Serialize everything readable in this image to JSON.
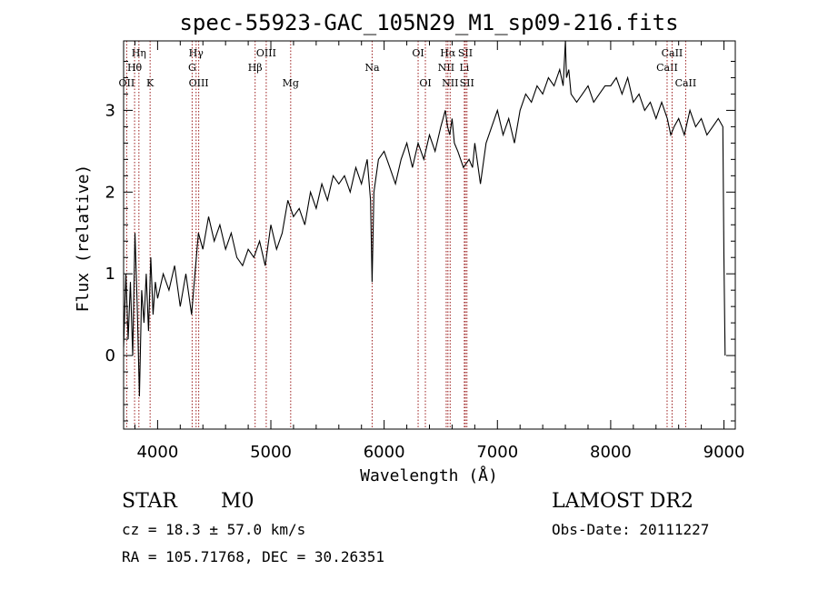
{
  "title": "spec-55923-GAC_105N29_M1_sp09-216.fits",
  "info": {
    "class": "STAR",
    "subclass": "M0",
    "survey": "LAMOST DR2",
    "cz": "cz = 18.3 ± 57.0 km/s",
    "obs_date": "Obs-Date: 20111227",
    "radec": "RA = 105.71768, DEC =  30.26351"
  },
  "chart_data": {
    "type": "line",
    "xlabel": "Wavelength (Å)",
    "ylabel": "Flux (relative)",
    "xlim": [
      3700,
      9100
    ],
    "ylim": [
      -0.9,
      3.85
    ],
    "xticks": [
      4000,
      5000,
      6000,
      7000,
      8000,
      9000
    ],
    "yticks": [
      0,
      1,
      2,
      3
    ],
    "spectral_lines": [
      {
        "name": "OII",
        "wavelength": 3727,
        "row": 3
      },
      {
        "name": "Hη",
        "wavelength": 3835,
        "row": 1
      },
      {
        "name": "Hθ",
        "wavelength": 3797,
        "row": 2
      },
      {
        "name": "K",
        "wavelength": 3934,
        "row": 3
      },
      {
        "name": "G",
        "wavelength": 4305,
        "row": 2
      },
      {
        "name": "Hγ",
        "wavelength": 4340,
        "row": 1
      },
      {
        "name": "OIII",
        "wavelength": 4363,
        "row": 3
      },
      {
        "name": "Hβ",
        "wavelength": 4861,
        "row": 2
      },
      {
        "name": "OIII",
        "wavelength": 4959,
        "row": 1
      },
      {
        "name": "Mg",
        "wavelength": 5175,
        "row": 3
      },
      {
        "name": "Na",
        "wavelength": 5894,
        "row": 2
      },
      {
        "name": "OI",
        "wavelength": 6300,
        "row": 1
      },
      {
        "name": "OI",
        "wavelength": 6364,
        "row": 3
      },
      {
        "name": "NII",
        "wavelength": 6548,
        "row": 2
      },
      {
        "name": "Hα",
        "wavelength": 6563,
        "row": 1
      },
      {
        "name": "NII",
        "wavelength": 6583,
        "row": 3
      },
      {
        "name": "SII",
        "wavelength": 6717,
        "row": 1
      },
      {
        "name": "Li",
        "wavelength": 6708,
        "row": 2
      },
      {
        "name": "SII",
        "wavelength": 6731,
        "row": 3
      },
      {
        "name": "CaII",
        "wavelength": 8498,
        "row": 2
      },
      {
        "name": "CaII",
        "wavelength": 8542,
        "row": 1
      },
      {
        "name": "CaII",
        "wavelength": 8662,
        "row": 3
      }
    ],
    "series": [
      {
        "x": [
          3700,
          3720,
          3740,
          3760,
          3780,
          3800,
          3820,
          3840,
          3860,
          3880,
          3900,
          3920,
          3940,
          3960,
          3980,
          4000,
          4050,
          4100,
          4150,
          4200,
          4250,
          4300,
          4330,
          4360,
          4400,
          4450,
          4500,
          4550,
          4600,
          4650,
          4700,
          4750,
          4800,
          4850,
          4900,
          4950,
          5000,
          5050,
          5100,
          5150,
          5200,
          5250,
          5300,
          5350,
          5400,
          5450,
          5500,
          5550,
          5600,
          5650,
          5700,
          5750,
          5800,
          5850,
          5880,
          5894,
          5910,
          5950,
          6000,
          6050,
          6100,
          6150,
          6200,
          6250,
          6300,
          6350,
          6400,
          6450,
          6500,
          6520,
          6540,
          6560,
          6580,
          6600,
          6620,
          6650,
          6700,
          6750,
          6780,
          6800,
          6850,
          6900,
          6950,
          7000,
          7050,
          7100,
          7150,
          7200,
          7250,
          7300,
          7350,
          7400,
          7450,
          7500,
          7550,
          7580,
          7600,
          7610,
          7630,
          7650,
          7700,
          7750,
          7800,
          7850,
          7900,
          7950,
          8000,
          8050,
          8100,
          8150,
          8200,
          8250,
          8300,
          8350,
          8400,
          8450,
          8500,
          8530,
          8560,
          8600,
          8650,
          8700,
          8750,
          8800,
          8850,
          8900,
          8950,
          8990,
          9000,
          9010
        ],
        "y": [
          0.1,
          1.0,
          0.2,
          0.9,
          0.0,
          1.5,
          0.6,
          -0.5,
          0.8,
          0.4,
          1.0,
          0.3,
          1.2,
          0.5,
          0.9,
          0.7,
          1.0,
          0.8,
          1.1,
          0.6,
          1.0,
          0.5,
          1.0,
          1.5,
          1.3,
          1.7,
          1.4,
          1.6,
          1.3,
          1.5,
          1.2,
          1.1,
          1.3,
          1.2,
          1.4,
          1.1,
          1.6,
          1.3,
          1.5,
          1.9,
          1.7,
          1.8,
          1.6,
          2.0,
          1.8,
          2.1,
          1.9,
          2.2,
          2.1,
          2.2,
          2.0,
          2.3,
          2.1,
          2.4,
          1.9,
          0.9,
          2.0,
          2.4,
          2.5,
          2.3,
          2.1,
          2.4,
          2.6,
          2.3,
          2.6,
          2.4,
          2.7,
          2.5,
          2.8,
          2.9,
          3.0,
          2.8,
          2.7,
          2.9,
          2.6,
          2.5,
          2.3,
          2.4,
          2.3,
          2.6,
          2.1,
          2.6,
          2.8,
          3.0,
          2.7,
          2.9,
          2.6,
          3.0,
          3.2,
          3.1,
          3.3,
          3.2,
          3.4,
          3.3,
          3.5,
          3.3,
          3.9,
          3.4,
          3.5,
          3.2,
          3.1,
          3.2,
          3.3,
          3.1,
          3.2,
          3.3,
          3.3,
          3.4,
          3.2,
          3.4,
          3.1,
          3.2,
          3.0,
          3.1,
          2.9,
          3.1,
          2.9,
          2.7,
          2.8,
          2.9,
          2.7,
          3.0,
          2.8,
          2.9,
          2.7,
          2.8,
          2.9,
          2.8,
          1.2,
          0.0
        ]
      }
    ]
  }
}
